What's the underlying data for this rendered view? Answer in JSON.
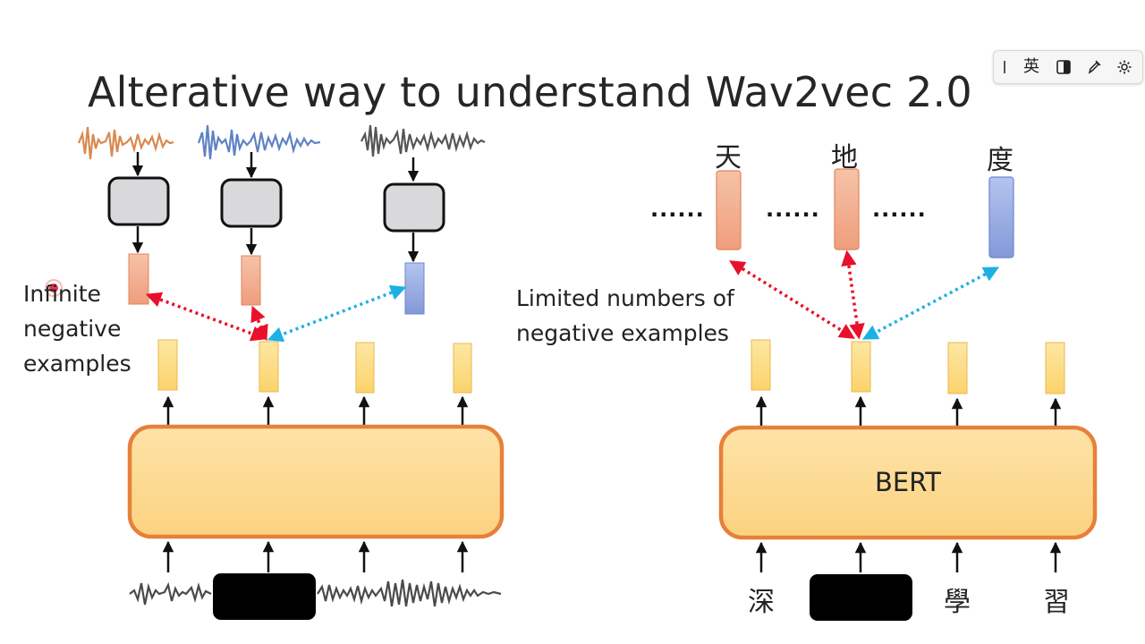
{
  "title": "Alterative way to understand Wav2vec 2.0",
  "left": {
    "label_line1": "Infinite",
    "label_line2": "negative",
    "label_line3": "examples"
  },
  "right": {
    "label_line1": "Limited numbers of",
    "label_line2": "negative examples",
    "model_label": "BERT",
    "output_tokens": [
      "天",
      "地",
      "度"
    ],
    "ellipsis": "......",
    "input_tokens": [
      "深",
      "學",
      "習"
    ]
  },
  "ime_toolbar": {
    "language": "英"
  },
  "colors": {
    "orange_border": "#e7803a",
    "model_fill": "#fdd58c",
    "token_yellow": "#fcd87a",
    "salmon": "#f0a586",
    "blue": "#8fa4dc",
    "red_arrow": "#e8102a",
    "cyan_arrow": "#1cb0e4"
  }
}
